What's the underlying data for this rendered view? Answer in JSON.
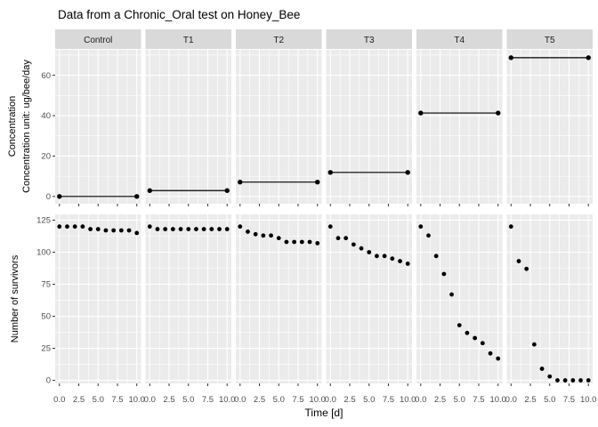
{
  "page": {
    "background": "#FFFFFF"
  },
  "chart_data": {
    "type": "scatter",
    "title": "Data from a Chronic_Oral test on Honey_Bee",
    "xlabel": "Time [d]",
    "facets": [
      "Control",
      "T1",
      "T2",
      "T3",
      "T4",
      "T5"
    ],
    "x": [
      0,
      1,
      2,
      3,
      4,
      5,
      6,
      7,
      8,
      9,
      10
    ],
    "xlim": [
      -0.55,
      10.55
    ],
    "x_major_ticks": [
      0,
      2.5,
      5,
      7.5,
      10
    ],
    "x_minor_ticks": [
      1.25,
      3.75,
      6.25,
      8.75
    ],
    "x_tick_labels": [
      "0.0",
      "2.5",
      "5.0",
      "7.5",
      "10.0"
    ],
    "grid": true,
    "legend": "none",
    "colors": {
      "panel": "#EBEBEB",
      "strip": "#D9D9D9",
      "grid": "#FFFFFF",
      "point": "#000000",
      "tick_text": "#4D4D4D",
      "strip_text": "#1A1A1A",
      "axis_tick": "#333333"
    },
    "concentration_row": {
      "ylabel_line1": "Concentration",
      "ylabel_line2": "Concentration unit: ug/bee/day",
      "ylim": [
        -3.6,
        72.6
      ],
      "yticks": [
        0,
        20,
        40,
        60
      ],
      "yminor": [
        10,
        30,
        50,
        70
      ],
      "series": [
        {
          "name": "Control",
          "x": [
            0,
            10
          ],
          "y": [
            0,
            0
          ]
        },
        {
          "name": "T1",
          "x": [
            0,
            10
          ],
          "y": [
            2.9,
            2.9
          ]
        },
        {
          "name": "T2",
          "x": [
            0,
            10
          ],
          "y": [
            7.1,
            7.1
          ]
        },
        {
          "name": "T3",
          "x": [
            0,
            10
          ],
          "y": [
            11.9,
            11.9
          ]
        },
        {
          "name": "T4",
          "x": [
            0,
            10
          ],
          "y": [
            41.3,
            41.3
          ]
        },
        {
          "name": "T5",
          "x": [
            0,
            10
          ],
          "y": [
            68.7,
            68.7
          ]
        }
      ]
    },
    "survivors_row": {
      "ylabel": "Number of survivors",
      "ylim": [
        -2.4,
        129.5
      ],
      "yticks": [
        0,
        25,
        50,
        75,
        100,
        125
      ],
      "yminor": [
        12.5,
        37.5,
        62.5,
        87.5,
        112.5
      ],
      "series": [
        {
          "name": "Control",
          "values": [
            120,
            120,
            120,
            120,
            118,
            118,
            117,
            117,
            117,
            117,
            115
          ]
        },
        {
          "name": "T1",
          "values": [
            120,
            118,
            118,
            118,
            118,
            118,
            118,
            118,
            118,
            118,
            118
          ]
        },
        {
          "name": "T2",
          "values": [
            120,
            116,
            114,
            113,
            113,
            111,
            108,
            108,
            108,
            108,
            107
          ]
        },
        {
          "name": "T3",
          "values": [
            120,
            111,
            111,
            106,
            103,
            100,
            97,
            97,
            95,
            93,
            91
          ]
        },
        {
          "name": "T4",
          "values": [
            120,
            113,
            97,
            83,
            67,
            43,
            37,
            33,
            29,
            21,
            17
          ]
        },
        {
          "name": "T5",
          "values": [
            120,
            93,
            87,
            28,
            9,
            3,
            0,
            0,
            0,
            0,
            0
          ]
        }
      ]
    }
  }
}
